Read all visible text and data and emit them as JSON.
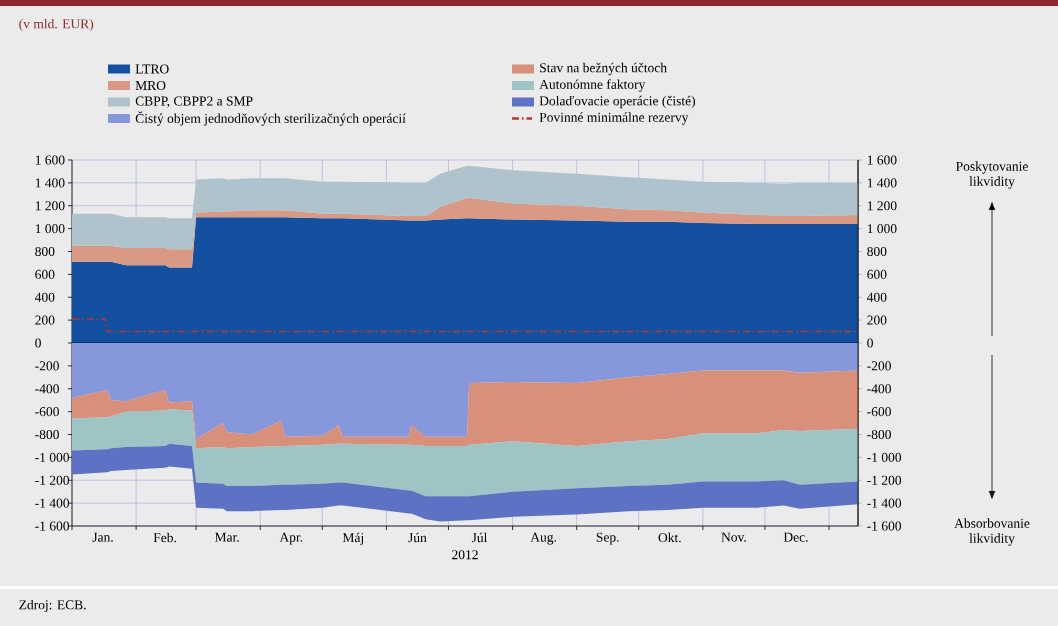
{
  "chart_data": [
    {
      "type": "area",
      "stacked": true,
      "title": "(v mld. EUR)",
      "annotations": [
        "Poskytovanie likvidity"
      ],
      "x": [
        "2012-01-01",
        "2012-01-18",
        "2012-01-20",
        "2012-01-27",
        "2012-02-15",
        "2012-02-17",
        "2012-02-28",
        "2012-03-01",
        "2012-03-14",
        "2012-03-16",
        "2012-03-28",
        "2012-04-11",
        "2012-04-13",
        "2012-05-01",
        "2012-05-09",
        "2012-05-11",
        "2012-06-12",
        "2012-06-13",
        "2012-06-20",
        "2012-06-27",
        "2012-07-10",
        "2012-07-11",
        "2012-08-01",
        "2012-09-01",
        "2012-09-26",
        "2012-10-15",
        "2012-11-01",
        "2012-11-27",
        "2012-12-10",
        "2012-12-18",
        "2013-01-15"
      ],
      "series": [
        {
          "name": "LTRO",
          "color": "#1450a0",
          "values": [
            710,
            710,
            710,
            680,
            680,
            660,
            660,
            1100,
            1100,
            1100,
            1100,
            1100,
            1100,
            1090,
            1090,
            1090,
            1070,
            1070,
            1070,
            1080,
            1090,
            1090,
            1080,
            1070,
            1060,
            1060,
            1050,
            1040,
            1040,
            1040,
            1040
          ]
        },
        {
          "name": "MRO",
          "color": "#d99a85",
          "values": [
            140,
            140,
            140,
            150,
            150,
            160,
            160,
            40,
            50,
            50,
            60,
            60,
            60,
            40,
            40,
            40,
            40,
            40,
            40,
            110,
            180,
            180,
            140,
            130,
            110,
            100,
            90,
            80,
            70,
            70,
            80
          ]
        },
        {
          "name": "CBPP, CBPP2 a SMP",
          "color": "#aec3cb",
          "values": [
            280,
            280,
            280,
            270,
            270,
            270,
            270,
            290,
            290,
            280,
            280,
            280,
            280,
            280,
            280,
            280,
            290,
            290,
            290,
            290,
            280,
            280,
            290,
            280,
            280,
            270,
            270,
            280,
            280,
            290,
            280
          ]
        },
        {
          "name": "Povinné minimálne rezervy",
          "type": "line",
          "line_style": "dashed",
          "color": "#b03a2e",
          "x": [
            "2012-01-01",
            "2012-01-17",
            "2012-01-18",
            "2013-01-15"
          ],
          "values": [
            210,
            210,
            100,
            100
          ]
        }
      ],
      "xlim": [
        "2012-01-01",
        "2013-01-15"
      ],
      "xticks": [
        "2012-01-01",
        "2012-02-01",
        "2012-03-01",
        "2012-04-01",
        "2012-05-01",
        "2012-06-01",
        "2012-07-01",
        "2012-08-01",
        "2012-09-01",
        "2012-10-01",
        "2012-11-01",
        "2012-12-01",
        "2013-01-01"
      ],
      "ylim": [
        0,
        1600
      ],
      "yticks": [
        0,
        200,
        400,
        600,
        800,
        {
          "value": 1000,
          "label": "1 000"
        },
        {
          "value": 1200,
          "label": "1 200"
        },
        {
          "value": 1400,
          "label": "1 400"
        },
        {
          "value": 1600,
          "label": "1 600"
        }
      ],
      "y2lim": [
        0,
        1600
      ],
      "y2ticks": [
        0,
        200,
        400,
        600,
        800,
        {
          "value": 1000,
          "label": "1 000"
        },
        {
          "value": 1200,
          "label": "1 200"
        },
        {
          "value": 1400,
          "label": "1 400"
        },
        {
          "value": 1600,
          "label": "1 600"
        }
      ],
      "tick_labels": "y",
      "grid": true,
      "legend": "top"
    },
    {
      "type": "area",
      "stacked": true,
      "xlabel": "2012",
      "annotations": [
        "Absorbovanie likvidity",
        "Zdroj: ECB."
      ],
      "x": [
        "2012-01-01",
        "2012-01-18",
        "2012-01-20",
        "2012-01-27",
        "2012-02-15",
        "2012-02-17",
        "2012-02-28",
        "2012-03-01",
        "2012-03-14",
        "2012-03-16",
        "2012-03-28",
        "2012-04-11",
        "2012-04-13",
        "2012-05-01",
        "2012-05-09",
        "2012-05-11",
        "2012-06-12",
        "2012-06-13",
        "2012-06-20",
        "2012-06-27",
        "2012-07-10",
        "2012-07-11",
        "2012-08-01",
        "2012-09-01",
        "2012-09-26",
        "2012-10-15",
        "2012-11-01",
        "2012-11-27",
        "2012-12-10",
        "2012-12-18",
        "2013-01-15"
      ],
      "series": [
        {
          "name": "Čistý objem jednodňových sterilizačných operácií",
          "color": "#8797dc",
          "values": [
            -480,
            -410,
            -500,
            -510,
            -410,
            -520,
            -510,
            -840,
            -700,
            -780,
            -800,
            -680,
            -820,
            -810,
            -720,
            -820,
            -820,
            -720,
            -820,
            -820,
            -820,
            -350,
            -340,
            -350,
            -300,
            -270,
            -240,
            -240,
            -240,
            -260,
            -240
          ]
        },
        {
          "name": "Stav na bežných účtoch",
          "color": "#d8907a",
          "values": [
            -180,
            -240,
            -140,
            -90,
            -180,
            -60,
            -80,
            -80,
            -210,
            -140,
            -110,
            -220,
            -80,
            -80,
            -160,
            -60,
            -70,
            -170,
            -80,
            -80,
            -80,
            -540,
            -520,
            -550,
            -560,
            -570,
            -550,
            -550,
            -520,
            -510,
            -510
          ]
        },
        {
          "name": "Autonómne faktory",
          "color": "#9fc4c6",
          "values": [
            -280,
            -280,
            -280,
            -310,
            -310,
            -300,
            -310,
            -300,
            -320,
            -330,
            -340,
            -340,
            -340,
            -340,
            -340,
            -340,
            -400,
            -400,
            -440,
            -440,
            -440,
            -450,
            -440,
            -370,
            -390,
            -400,
            -420,
            -420,
            -440,
            -470,
            -460
          ]
        },
        {
          "name": "Dolaďovacie operácie (čisté)",
          "color": "#5d72c2",
          "values": [
            -210,
            -200,
            -200,
            -200,
            -190,
            -200,
            -200,
            -220,
            -220,
            -220,
            -220,
            -220,
            -220,
            -210,
            -200,
            -200,
            -200,
            -200,
            -200,
            -220,
            -210,
            -210,
            -220,
            -230,
            -220,
            -220,
            -230,
            -230,
            -220,
            -210,
            -200
          ]
        }
      ],
      "xlim": [
        "2012-01-01",
        "2013-01-15"
      ],
      "xticks": [
        {
          "value": "2012-01-01",
          "label": null
        },
        {
          "value": "2012-02-01",
          "label": null
        },
        {
          "value": "2012-03-01",
          "label": null
        },
        {
          "value": "2012-04-01",
          "label": null
        },
        {
          "value": "2012-05-01",
          "label": null
        },
        {
          "value": "2012-06-01",
          "label": null
        },
        {
          "value": "2012-07-01",
          "label": null
        },
        {
          "value": "2012-08-01",
          "label": null
        },
        {
          "value": "2012-09-01",
          "label": null
        },
        {
          "value": "2012-10-01",
          "label": null
        },
        {
          "value": "2012-11-01",
          "label": null
        },
        {
          "value": "2012-12-01",
          "label": null
        },
        {
          "value": "2013-01-01",
          "label": null
        },
        {
          "value": "2012-01-16",
          "label": "Jan."
        },
        {
          "value": "2012-02-15",
          "label": "Feb."
        },
        {
          "value": "2012-03-16",
          "label": "Mar."
        },
        {
          "value": "2012-04-16",
          "label": "Apr."
        },
        {
          "value": "2012-05-16",
          "label": "Máj"
        },
        {
          "value": "2012-06-16",
          "label": "Jún"
        },
        {
          "value": "2012-07-16",
          "label": "Júl"
        },
        {
          "value": "2012-08-16",
          "label": "Aug."
        },
        {
          "value": "2012-09-16",
          "label": "Sep."
        },
        {
          "value": "2012-10-16",
          "label": "Okt."
        },
        {
          "value": "2012-11-16",
          "label": "Nov."
        },
        {
          "value": "2012-12-16",
          "label": "Dec."
        }
      ],
      "ylim": [
        -1600,
        0
      ],
      "yticks": [
        {
          "value": -1600,
          "label": "-1 600"
        },
        {
          "value": -1400,
          "label": "-1 400"
        },
        {
          "value": -1200,
          "label": "-1 200"
        },
        {
          "value": -1000,
          "label": "-1 000"
        },
        -800,
        -600,
        -400,
        -200
      ],
      "y2lim": [
        -1600,
        0
      ],
      "y2ticks": [
        {
          "value": -1600,
          "label": "-1 600"
        },
        {
          "value": -1400,
          "label": "-1 400"
        },
        {
          "value": -1200,
          "label": "-1 200"
        },
        {
          "value": -1000,
          "label": "-1 000"
        },
        -800,
        -600,
        -400,
        -200
      ],
      "grid": true,
      "legend": "top"
    }
  ]
}
